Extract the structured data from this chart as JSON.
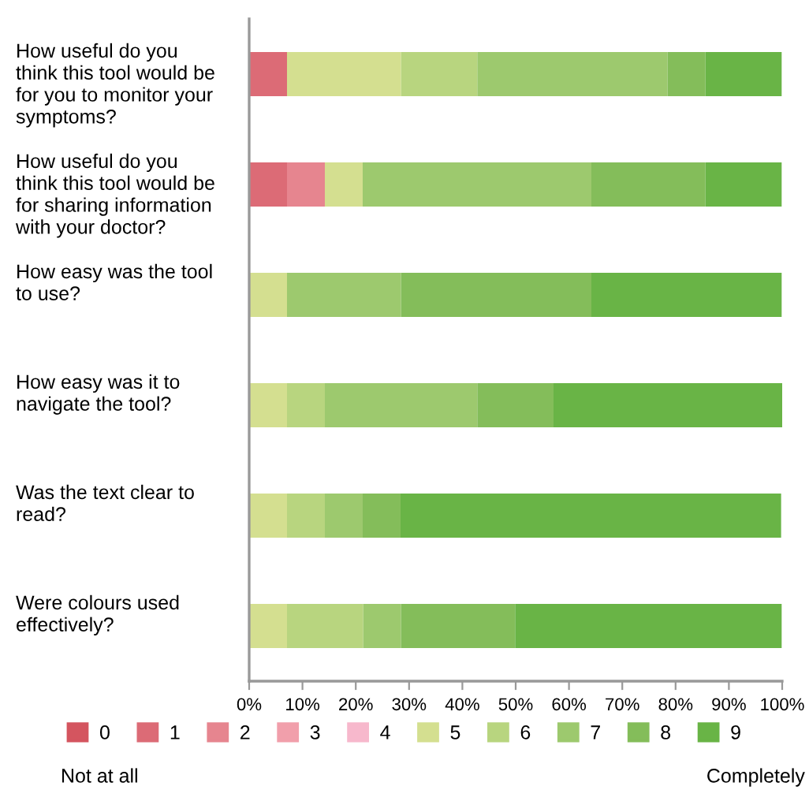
{
  "chart_data": {
    "type": "bar",
    "orientation": "horizontal",
    "stacked": true,
    "legend": "bottom",
    "grid": false,
    "categories": [
      "How useful do you\nthink this tool would be\nfor you to monitor your\nsymptoms?",
      "How useful do you\nthink this tool would be\nfor sharing information\nwith your doctor?",
      "How easy was the tool\nto use?",
      "How easy was it to\nnavigate the tool?",
      "Was the text clear to\nread?",
      "Were colours used\neffectively?"
    ],
    "xlim": [
      0,
      100
    ],
    "xticks": [
      {
        "value": 0,
        "label": "0%"
      },
      {
        "value": 10,
        "label": "10%"
      },
      {
        "value": 20,
        "label": "20%"
      },
      {
        "value": 30,
        "label": "30%"
      },
      {
        "value": 40,
        "label": "40%"
      },
      {
        "value": 50,
        "label": "50%"
      },
      {
        "value": 60,
        "label": "60%"
      },
      {
        "value": 70,
        "label": "70%"
      },
      {
        "value": 80,
        "label": "80%"
      },
      {
        "value": 90,
        "label": "90%"
      },
      {
        "value": 100,
        "label": "100%"
      }
    ],
    "series": [
      {
        "name": "0",
        "color": "#d4555f",
        "values": [
          0,
          0,
          0,
          0,
          0,
          0
        ]
      },
      {
        "name": "1",
        "color": "#dc6b76",
        "values": [
          7.1,
          7.1,
          0,
          0,
          0,
          0
        ]
      },
      {
        "name": "2",
        "color": "#e6858f",
        "values": [
          0,
          7.1,
          0,
          0,
          0,
          0
        ]
      },
      {
        "name": "3",
        "color": "#f19fab",
        "values": [
          0,
          0,
          0,
          0,
          0,
          0
        ]
      },
      {
        "name": "4",
        "color": "#f7b8cc",
        "values": [
          0,
          0,
          0,
          0,
          0,
          0
        ]
      },
      {
        "name": "5",
        "color": "#d4df90",
        "values": [
          21.4,
          7.1,
          7.1,
          7.1,
          7.1,
          7.1
        ]
      },
      {
        "name": "6",
        "color": "#b8d57f",
        "values": [
          14.3,
          0,
          0,
          7.1,
          7.1,
          14.3
        ]
      },
      {
        "name": "7",
        "color": "#9dc96e",
        "values": [
          35.7,
          42.9,
          21.4,
          28.6,
          7.1,
          7.1
        ]
      },
      {
        "name": "8",
        "color": "#84bd5a",
        "values": [
          7.1,
          21.4,
          35.7,
          14.3,
          7.1,
          21.4
        ]
      },
      {
        "name": "9",
        "color": "#69b446",
        "values": [
          14.3,
          14.3,
          35.7,
          42.9,
          71.4,
          50
        ]
      }
    ],
    "annotations": [
      "Not at all",
      "Completely"
    ]
  }
}
